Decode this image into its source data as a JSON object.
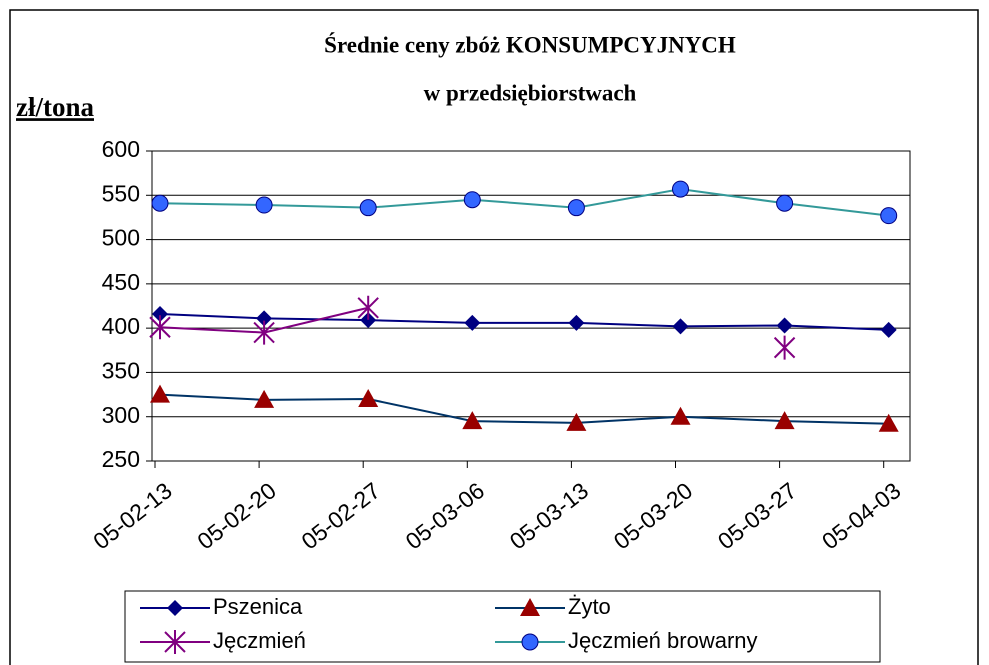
{
  "chart_data": {
    "type": "line",
    "title": "Średnie ceny zbóż KONSUMPCYJNYCH",
    "subtitle": "w przedsiębiorstwach",
    "y_label": "zł/tona",
    "categories": [
      "05-02-13",
      "05-02-20",
      "05-02-27",
      "05-03-06",
      "05-03-13",
      "05-03-20",
      "05-03-27",
      "05-04-03"
    ],
    "series": [
      {
        "name": "Pszenica",
        "color": "#000080",
        "marker": "diamond",
        "marker_color": "#000080",
        "values": [
          416,
          411,
          409,
          406,
          406,
          402,
          403,
          398
        ]
      },
      {
        "name": "Żyto",
        "color": "#003366",
        "marker": "triangle",
        "marker_color": "#990000",
        "values": [
          325,
          319,
          320,
          295,
          293,
          300,
          295,
          292
        ]
      },
      {
        "name": "Jęczmień",
        "color": "#800080",
        "marker": "star",
        "marker_color": "#800080",
        "values": [
          401,
          395,
          423,
          null,
          null,
          null,
          378,
          null
        ]
      },
      {
        "name": "Jęczmień browarny",
        "color": "#339999",
        "marker": "circle",
        "marker_color": "#3366ff",
        "values": [
          541,
          539,
          536,
          545,
          536,
          557,
          541,
          527
        ]
      }
    ],
    "ylim": [
      250,
      600
    ],
    "yticks": [
      250,
      300,
      350,
      400,
      450,
      500,
      550,
      600
    ],
    "grid": true
  }
}
